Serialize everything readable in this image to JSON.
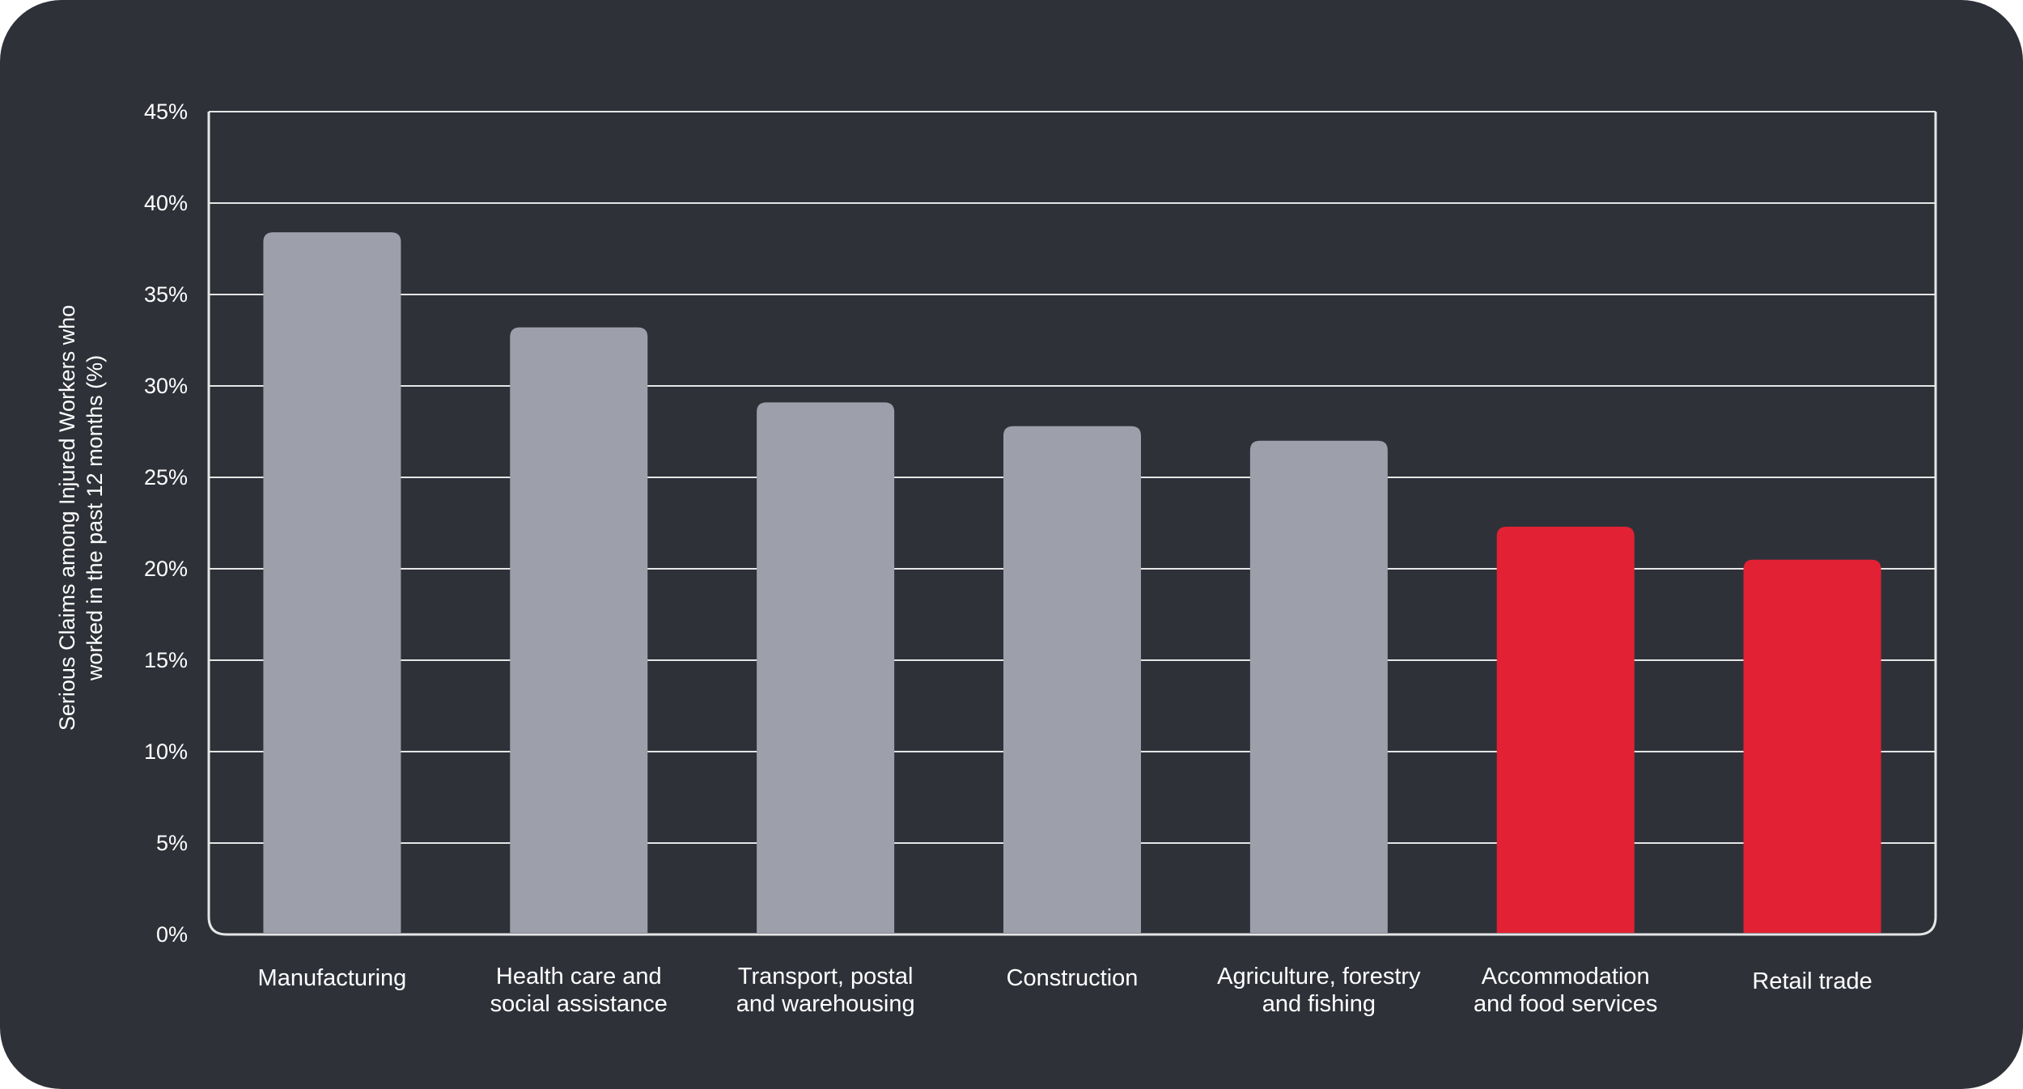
{
  "chart_data": {
    "type": "bar",
    "title": "",
    "xlabel": "",
    "ylabel_lines": [
      "Serious Claims among Injured Workers who",
      "worked in the past 12 months (%)"
    ],
    "categories": [
      [
        "Manufacturing"
      ],
      [
        "Health care and",
        "social assistance"
      ],
      [
        "Transport, postal",
        "and warehousing"
      ],
      [
        "Construction"
      ],
      [
        "Agriculture, forestry",
        "and fishing"
      ],
      [
        "Accommodation",
        "and food services"
      ],
      [
        "Retail trade"
      ]
    ],
    "values": [
      38.4,
      33.2,
      29.1,
      27.8,
      27.0,
      22.3,
      20.5
    ],
    "highlight": [
      false,
      false,
      false,
      false,
      false,
      true,
      true
    ],
    "colors": {
      "default": "#9d9fab",
      "highlight": "#e32134",
      "background": "#2f3139",
      "grid": "#e6e6e6",
      "text": "#ffffff"
    },
    "ylim": [
      0,
      45
    ],
    "yticks": [
      0,
      5,
      10,
      15,
      20,
      25,
      30,
      35,
      40,
      45
    ],
    "ytick_labels": [
      "0%",
      "5%",
      "10%",
      "15%",
      "20%",
      "25%",
      "30%",
      "35%",
      "40%",
      "45%"
    ],
    "grid": true,
    "legend": "none"
  }
}
